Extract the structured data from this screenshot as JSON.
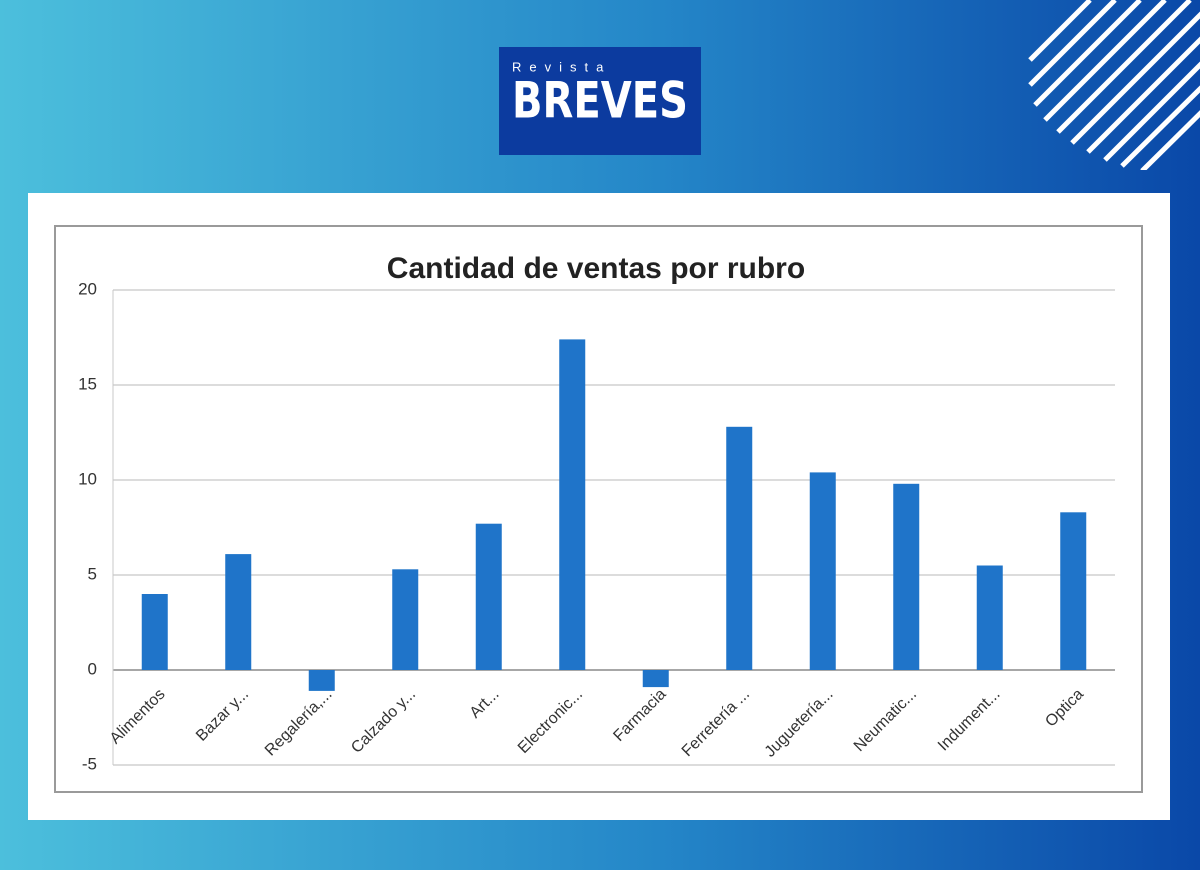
{
  "brand": {
    "kicker": "Revista",
    "name": "BREVES"
  },
  "chart_data": {
    "type": "bar",
    "title": "Cantidad de ventas por rubro",
    "categories": [
      "Alimentos",
      "Bazar y...",
      "Regalería,...",
      "Calzado y...",
      "Art...",
      "Electronic...",
      "Farmacia",
      "Ferretería ...",
      "Juguetería...",
      "Neumatic...",
      "Indument...",
      "Optica"
    ],
    "values": [
      4.0,
      6.1,
      -1.1,
      5.3,
      7.7,
      17.4,
      -0.9,
      12.8,
      10.4,
      9.8,
      5.5,
      8.3
    ],
    "color": "#1f74c9",
    "ylim": [
      -5,
      20
    ],
    "yticks": [
      -5,
      0,
      5,
      10,
      15,
      20
    ],
    "grid": true
  }
}
